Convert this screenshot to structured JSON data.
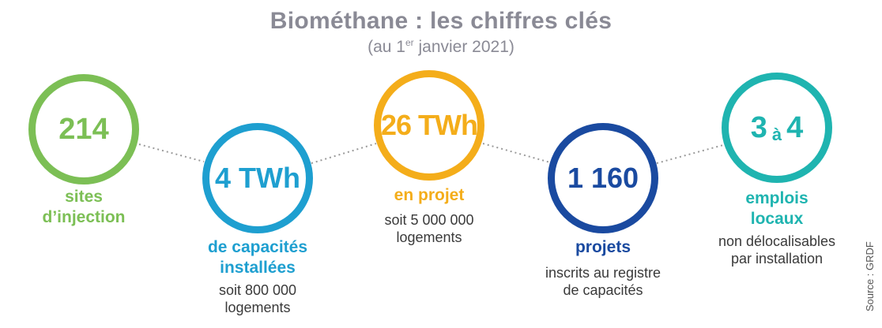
{
  "header": {
    "title": "Biométhane : les chiffres clés",
    "subtitle_prefix": "(au 1",
    "subtitle_sup": "er",
    "subtitle_suffix": " janvier 2021)"
  },
  "stats": [
    {
      "value": "214",
      "label_lines": [
        "sites",
        "d’injection"
      ],
      "desc_lines": [],
      "color": "#7cbf55"
    },
    {
      "value": "4 TWh",
      "label_lines": [
        "de capacités",
        "installées"
      ],
      "desc_lines": [
        "soit 800 000",
        "logements"
      ],
      "color": "#1e9fd0"
    },
    {
      "value": "26 TWh",
      "label_lines": [
        "en projet"
      ],
      "desc_lines": [
        "soit 5 000 000",
        "logements"
      ],
      "color": "#f4ad1a"
    },
    {
      "value": "1 160",
      "label_lines": [
        "projets"
      ],
      "desc_lines": [
        "inscrits au registre",
        "de capacités"
      ],
      "color": "#1a4aa0"
    },
    {
      "value_main_1": "3",
      "value_small": "à",
      "value_main_2": "4",
      "label_lines": [
        "emplois",
        "locaux"
      ],
      "desc_lines": [
        "non délocalisables",
        "par installation"
      ],
      "color": "#1fb4b0"
    }
  ],
  "source": "Source : GRDF"
}
